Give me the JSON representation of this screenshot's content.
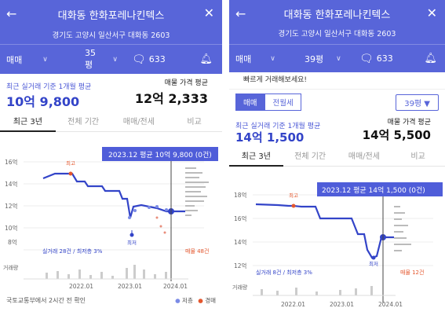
{
  "left": {
    "header": {
      "back_icon": "arrow-left-icon",
      "title": "대화동 한화포레나킨텍스",
      "close_icon": "close-icon",
      "address": "경기도 고양시 일산서구 대화동 2603",
      "trade_type": "매매",
      "size": "35평",
      "comment_count": "633",
      "alarm_icon": "bell-icon"
    },
    "price": {
      "left_label": "최근 실거래 기준 1개월 평균",
      "left_value": "10억 9,800",
      "right_label": "매물 가격 평균",
      "right_value": "12억 2,333"
    },
    "tabs": [
      "최근 3년",
      "전체 기간",
      "매매/전세",
      "비교"
    ],
    "chart": {
      "tooltip": "2023.12 평균 10억 9,800 (0건)",
      "y_ticks": [
        "16억",
        "14억",
        "12억",
        "10억",
        "8억"
      ],
      "x_ticks": [
        "2022.01",
        "2023.01",
        "2024.01"
      ],
      "high_label": "최고",
      "low_label": "최저",
      "trade_info": "실거래 28건 / 최저층 3%",
      "listing_info": "매물 48건",
      "volume_label": "거래량"
    },
    "footer": "국토교통부에서 2시간 전 확인",
    "legend": [
      "저층",
      "경매"
    ]
  },
  "right": {
    "header": {
      "back_icon": "arrow-left-icon",
      "title": "대화동 한화포레나킨텍스",
      "close_icon": "close-icon",
      "address": "경기도 고양시 일산서구 대화동 2603",
      "trade_type": "매매",
      "size": "39평",
      "comment_count": "633",
      "alarm_icon": "bell-icon"
    },
    "cutoff_text": "빠르게 거래해보세요!",
    "selector": {
      "seg_on": "매매",
      "seg_off": "전월세",
      "dropdown": "39평 ▼"
    },
    "price": {
      "left_label": "최근 실거래 기준 1개월 평균",
      "left_value": "14억 1,500",
      "right_label": "매물 가격 평균",
      "right_value": "14억 5,500"
    },
    "tabs": [
      "최근 3년",
      "전체 기간",
      "매매/전세",
      "비교"
    ],
    "chart": {
      "tooltip": "2023.12 평균 14억 1,500 (0건)",
      "y_ticks": [
        "18억",
        "16억",
        "14억",
        "12억"
      ],
      "x_ticks": [
        "2022.01",
        "2023.01",
        "2024.01"
      ],
      "high_label": "최고",
      "low_label": "최저",
      "trade_info": "실거래 8건 / 최저층 3%",
      "listing_info": "매물 12건",
      "volume_label": "거래량"
    }
  },
  "colors": {
    "header": "#5865d9",
    "line": "#3344c8",
    "accent_red": "#e4572e"
  }
}
